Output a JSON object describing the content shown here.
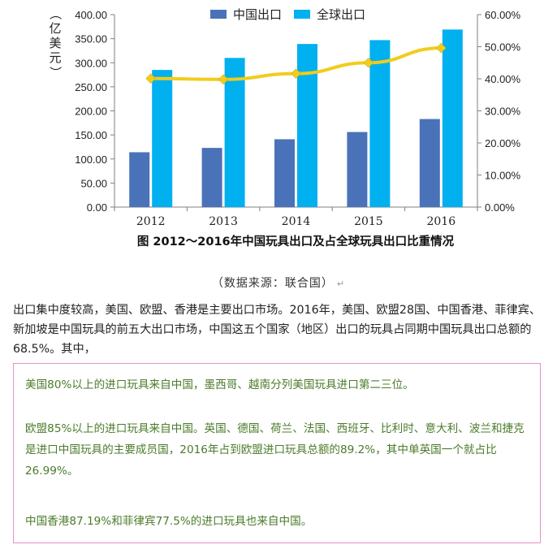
{
  "chart_data": {
    "type": "bar+line",
    "categories": [
      "2012",
      "2013",
      "2014",
      "2015",
      "2016"
    ],
    "series": [
      {
        "name": "中国出口",
        "type": "bar",
        "axis": "left",
        "color": "#4a72b8",
        "values": [
          114,
          123,
          141,
          156,
          183
        ]
      },
      {
        "name": "全球出口",
        "type": "bar",
        "axis": "left",
        "color": "#00b0ef",
        "values": [
          285,
          310,
          339,
          347,
          369
        ]
      },
      {
        "name": "",
        "type": "line",
        "axis": "right",
        "color": "#f2cc1c",
        "values": [
          40.1,
          39.8,
          41.6,
          45.0,
          49.6
        ]
      }
    ],
    "y_left": {
      "label": "（亿美元）",
      "range": [
        0,
        400
      ],
      "ticks": [
        "0.00",
        "50.00",
        "100.00",
        "150.00",
        "200.00",
        "250.00",
        "300.00",
        "350.00",
        "400.00"
      ]
    },
    "y_right": {
      "range": [
        0,
        60
      ],
      "ticks": [
        "0.00%",
        "10.00%",
        "20.00%",
        "30.00%",
        "40.00%",
        "50.00%",
        "60.00%"
      ]
    },
    "legend_position": "top-center",
    "grid": false,
    "title": "图    2012～2016年中国玩具出口及占全球玩具出口比重情况"
  },
  "source_text": "（数据来源：联合国）",
  "return_mark": "↵",
  "paragraph": "出口集中度较高，美国、欧盟、香港是主要出口市场。2016年，美国、欧盟28国、中国香港、菲律宾、新加坡是中国玩具的前五大出口市场，中国这五个国家（地区）出口的玩具占同期中国玩具出口总额的68.5%。其中，",
  "quote": {
    "p1": "美国80%以上的进口玩具来自中国，墨西哥、越南分列美国玩具进口第二三位。",
    "p2": "欧盟85%以上的进口玩具来自中国。英国、德国、荷兰、法国、西班牙、比利时、意大利、波兰和捷克是进口中国玩具的主要成员国，2016年占到欧盟进口玩具总额的89.2%，其中单英国一个就占比26.99%。",
    "p3": "中国香港87.19%和菲律宾77.5%的进口玩具也来自中国。"
  }
}
